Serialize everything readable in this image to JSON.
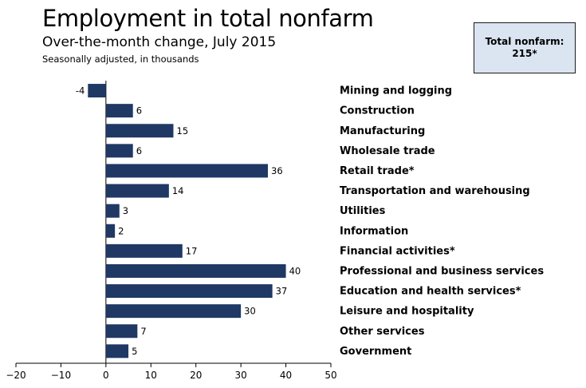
{
  "header": {
    "title": "Employment in total nonfarm",
    "subtitle": "Over-the-month change, July 2015",
    "note": "Seasonally adjusted, in thousands"
  },
  "total_box": {
    "label": "Total nonfarm:",
    "value": "215*"
  },
  "colors": {
    "bar": "#1f3864",
    "box_fill": "#dbe5f1"
  },
  "chart_data": {
    "type": "bar",
    "orientation": "horizontal",
    "title": "Employment in total nonfarm",
    "subtitle": "Over-the-month change, July 2015",
    "xlabel": "",
    "ylabel": "",
    "xlim": [
      -20,
      50
    ],
    "xticks": [
      -20,
      -10,
      0,
      10,
      20,
      30,
      40,
      50
    ],
    "categories": [
      "Mining and logging",
      "Construction",
      "Manufacturing",
      "Wholesale trade",
      "Retail trade*",
      "Transportation and warehousing",
      "Utilities",
      "Information",
      "Financial activities*",
      "Professional and business services",
      "Education and health services*",
      "Leisure and hospitality",
      "Other services",
      "Government"
    ],
    "values": [
      -4,
      6,
      15,
      6,
      36,
      14,
      3,
      2,
      17,
      40,
      37,
      30,
      7,
      5
    ]
  }
}
